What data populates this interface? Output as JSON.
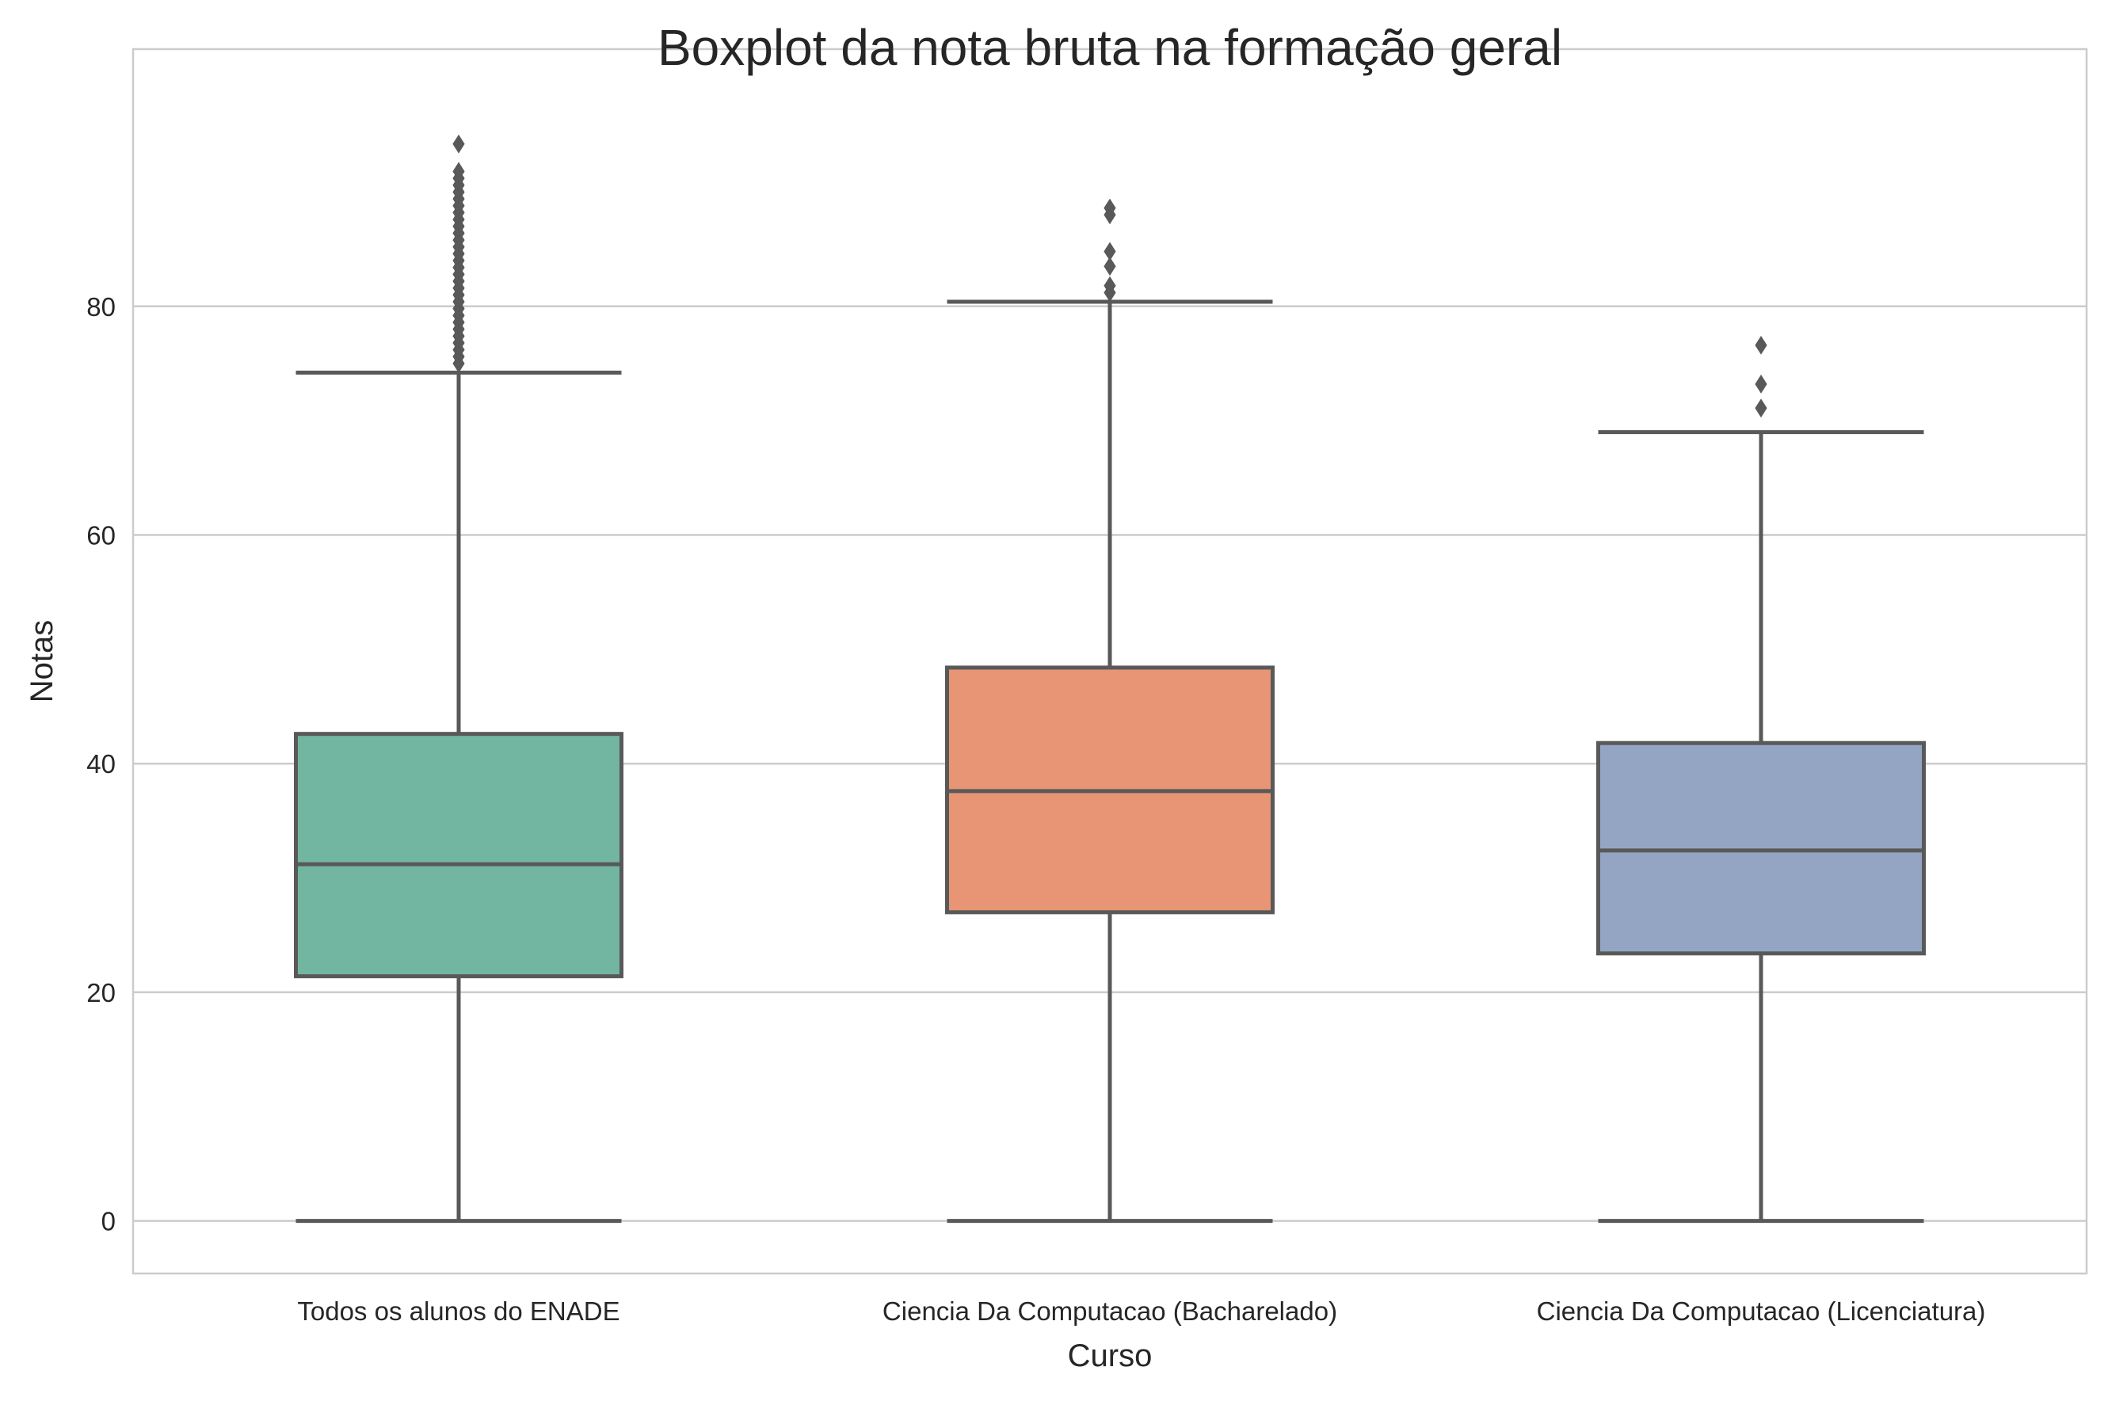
{
  "chart_data": {
    "type": "box",
    "title": "Boxplot da nota bruta na formação geral",
    "xlabel": "Curso",
    "ylabel": "Notas",
    "ylim": [
      -4.6,
      102.5
    ],
    "yticks": [
      0,
      20,
      40,
      60,
      80
    ],
    "grid": "horizontal",
    "categories": [
      "Todos os alunos do ENADE",
      "Ciencia Da Computacao (Bacharelado)",
      "Ciencia Da Computacao (Licenciatura)"
    ],
    "boxes": [
      {
        "label": "Todos os alunos do ENADE",
        "whisker_low": 0,
        "q1": 21.4,
        "median": 31.2,
        "q3": 42.6,
        "whisker_high": 74.2,
        "outliers": [
          75.0,
          75.6,
          76.2,
          76.8,
          77.4,
          78.0,
          78.6,
          79.2,
          79.8,
          80.4,
          81.0,
          81.6,
          82.2,
          82.8,
          83.4,
          84.0,
          84.6,
          85.2,
          85.8,
          86.4,
          87.0,
          87.6,
          88.2,
          88.8,
          89.4,
          90.0,
          90.6,
          91.2,
          91.8,
          94.2
        ],
        "color": "#72b5a0"
      },
      {
        "label": "Ciencia Da Computacao (Bacharelado)",
        "whisker_low": 0,
        "q1": 27.0,
        "median": 37.6,
        "q3": 48.4,
        "whisker_high": 80.4,
        "outliers": [
          81.2,
          81.8,
          83.5,
          84.8,
          88.0,
          88.6
        ],
        "color": "#e79574"
      },
      {
        "label": "Ciencia Da Computacao (Licenciatura)",
        "whisker_low": 0,
        "q1": 23.4,
        "median": 32.4,
        "q3": 41.8,
        "whisker_high": 69.0,
        "outliers": [
          71.1,
          73.2,
          76.6
        ],
        "color": "#94a5c3"
      }
    ],
    "line_color": "#595959",
    "grid_color": "#cccccc",
    "frame_color": "#cccccc"
  }
}
